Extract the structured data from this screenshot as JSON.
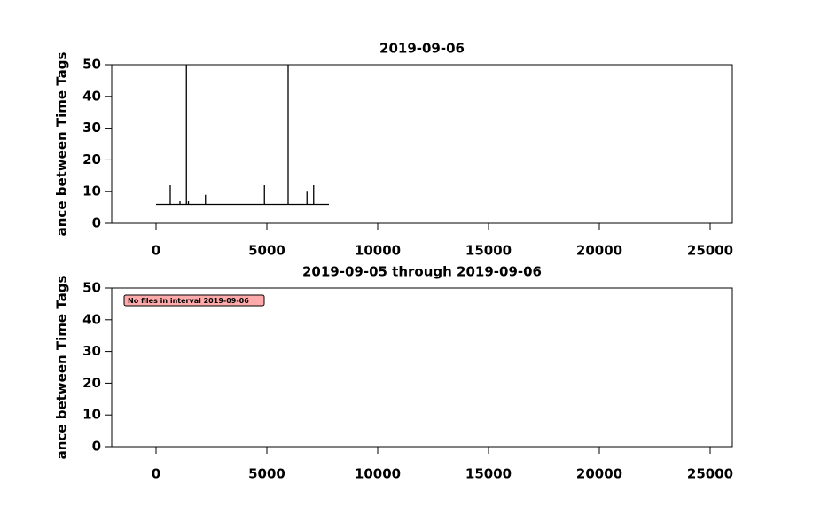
{
  "chart_data": [
    {
      "type": "line",
      "title": "2019-09-06",
      "y_label": "ance between Time Tags",
      "xlim": [
        -2000,
        26000
      ],
      "xticks": [
        0,
        5000,
        10000,
        15000,
        20000,
        25000
      ],
      "ylim": [
        0,
        50
      ],
      "yticks": [
        0,
        10,
        20,
        30,
        40,
        50
      ],
      "series": [
        {
          "color": "#000000",
          "x": [
            0,
            640,
            640,
            640,
            1080,
            1080,
            1080,
            1370,
            1370,
            1370,
            1460,
            1460,
            1460,
            2230,
            2230,
            2230,
            4890,
            4890,
            4890,
            5960,
            5960,
            5960,
            6810,
            6810,
            6810,
            7110,
            7110,
            7110,
            7800
          ],
          "values": [
            6,
            6,
            12,
            6,
            6,
            7,
            6,
            6,
            50,
            6,
            6,
            7,
            6,
            6,
            9,
            6,
            6,
            12,
            6,
            6,
            50,
            6,
            6,
            10,
            6,
            6,
            12,
            6,
            6
          ]
        }
      ]
    },
    {
      "type": "line",
      "title": "2019-09-05 through 2019-09-06",
      "y_label": "ance between Time Tags",
      "annotation": "No files in interval 2019-09-06",
      "xlim": [
        -2000,
        26000
      ],
      "xticks": [
        0,
        5000,
        10000,
        15000,
        20000,
        25000
      ],
      "ylim": [
        0,
        50
      ],
      "yticks": [
        0,
        10,
        20,
        30,
        40,
        50
      ],
      "series": []
    }
  ]
}
